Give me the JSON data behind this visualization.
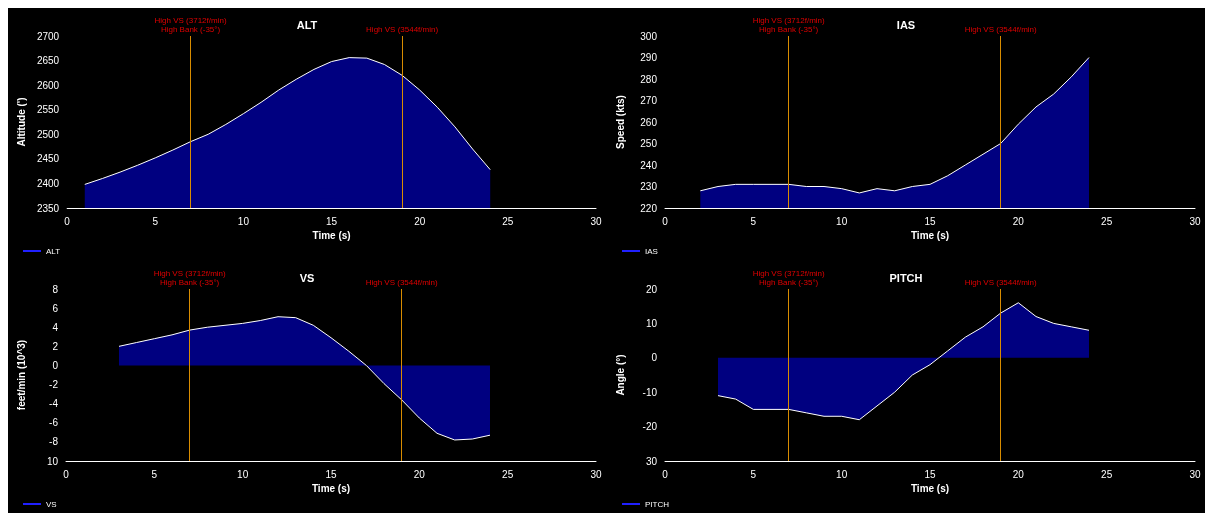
{
  "chart_data": [
    {
      "type": "area",
      "title": "ALT",
      "xlabel": "Time (s)",
      "ylabel": "Altitude (')",
      "xlim": [
        0,
        30
      ],
      "xticks": [
        0,
        5,
        10,
        15,
        20,
        25,
        30
      ],
      "ylim": [
        2350,
        2700
      ],
      "yticks": [
        2350,
        2400,
        2450,
        2500,
        2550,
        2600,
        2650,
        2700
      ],
      "grid": false,
      "legend": "bottom left",
      "ref_lines": [
        {
          "axis": "x",
          "value": 7,
          "label": "High VS (3712f/min)\nHigh Bank (-35°)",
          "color": "#d98c00"
        },
        {
          "axis": "x",
          "value": 19,
          "label": "High VS (3544f/min)",
          "color": "#d98c00"
        }
      ],
      "x": [
        1,
        2,
        3,
        4,
        5,
        6,
        7,
        8,
        9,
        10,
        11,
        12,
        13,
        14,
        15,
        16,
        17,
        18,
        19,
        20,
        21,
        22,
        23,
        24
      ],
      "series": [
        {
          "name": "ALT",
          "color": "#000080",
          "values": [
            2398,
            2410,
            2423,
            2437,
            2452,
            2468,
            2485,
            2500,
            2520,
            2542,
            2565,
            2590,
            2612,
            2632,
            2648,
            2656,
            2655,
            2642,
            2620,
            2590,
            2555,
            2515,
            2470,
            2428
          ]
        }
      ]
    },
    {
      "type": "area",
      "title": "IAS",
      "xlabel": "Time (s)",
      "ylabel": "Speed (kts)",
      "xlim": [
        0,
        30
      ],
      "xticks": [
        0,
        5,
        10,
        15,
        20,
        25,
        30
      ],
      "ylim": [
        220,
        300
      ],
      "yticks": [
        220,
        230,
        240,
        250,
        260,
        270,
        280,
        290,
        300
      ],
      "grid": false,
      "legend": "bottom left",
      "ref_lines": [
        {
          "axis": "x",
          "value": 7,
          "label": "High VS (3712f/min)\nHigh Bank (-35°)",
          "color": "#d98c00"
        },
        {
          "axis": "x",
          "value": 19,
          "label": "High VS (3544f/min)",
          "color": "#d98c00"
        }
      ],
      "x": [
        2,
        3,
        4,
        5,
        6,
        7,
        8,
        9,
        10,
        11,
        12,
        13,
        14,
        15,
        16,
        17,
        18,
        19,
        20,
        21,
        22,
        23,
        24
      ],
      "series": [
        {
          "name": "IAS",
          "color": "#000080",
          "values": [
            228,
            230,
            231,
            231,
            231,
            231,
            230,
            230,
            229,
            227,
            229,
            228,
            230,
            231,
            235,
            240,
            245,
            250,
            259,
            267,
            273,
            281,
            290
          ]
        }
      ]
    },
    {
      "type": "area",
      "title": "VS",
      "xlabel": "Time (s)",
      "ylabel": "feet/min (10^3)",
      "xlim": [
        0,
        30
      ],
      "xticks": [
        0,
        5,
        10,
        15,
        20,
        25,
        30
      ],
      "ylim": [
        -10,
        8
      ],
      "yticks": [
        {
          "value": -10,
          "label": "10"
        },
        -8,
        -6,
        -4,
        -2,
        0,
        2,
        4,
        6,
        8
      ],
      "grid": false,
      "legend": "bottom left",
      "ref_lines": [
        {
          "axis": "x",
          "value": 7,
          "label": "High VS (3712f/min)\nHigh Bank (-35°)",
          "color": "#d98c00"
        },
        {
          "axis": "x",
          "value": 19,
          "label": "High VS (3544f/min)",
          "color": "#d98c00"
        }
      ],
      "x": [
        3,
        4,
        5,
        6,
        7,
        8,
        9,
        10,
        11,
        12,
        13,
        14,
        15,
        16,
        17,
        18,
        19,
        20,
        21,
        22,
        23,
        24
      ],
      "series": [
        {
          "name": "VS",
          "color": "#000080",
          "values": [
            2.0,
            2.4,
            2.8,
            3.2,
            3.7,
            4.0,
            4.2,
            4.4,
            4.7,
            5.1,
            5.0,
            4.2,
            2.9,
            1.5,
            0,
            -1.9,
            -3.6,
            -5.5,
            -7.1,
            -7.8,
            -7.7,
            -7.3
          ]
        }
      ]
    },
    {
      "type": "area",
      "title": "PITCH",
      "xlabel": "Time (s)",
      "ylabel": "Angle (°)",
      "xlim": [
        0,
        30
      ],
      "xticks": [
        0,
        5,
        10,
        15,
        20,
        25,
        30
      ],
      "ylim": [
        -30,
        20
      ],
      "yticks": [
        {
          "value": -30,
          "label": "30"
        },
        -20,
        -10,
        0,
        10,
        20
      ],
      "grid": false,
      "legend": "bottom left",
      "ref_lines": [
        {
          "axis": "x",
          "value": 7,
          "label": "High VS (3712f/min)\nHigh Bank (-35°)",
          "color": "#d98c00"
        },
        {
          "axis": "x",
          "value": 19,
          "label": "High VS (3544f/min)",
          "color": "#d98c00"
        }
      ],
      "x": [
        3,
        4,
        5,
        6,
        7,
        8,
        9,
        10,
        11,
        12,
        13,
        14,
        15,
        16,
        17,
        18,
        19,
        20,
        21,
        22,
        23,
        24
      ],
      "series": [
        {
          "name": "PITCH",
          "color": "#000080",
          "values": [
            -11,
            -12,
            -15,
            -15,
            -15,
            -16,
            -17,
            -17,
            -18,
            -14,
            -10,
            -5,
            -2,
            2,
            6,
            9,
            13,
            16,
            12,
            10,
            9,
            8
          ]
        }
      ]
    }
  ]
}
